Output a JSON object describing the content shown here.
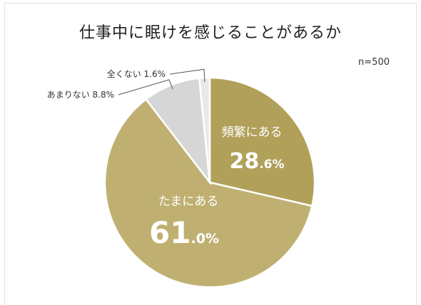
{
  "title": "仕事中に眠けを感じることがあるか",
  "sample_size": "n=500",
  "chart_data": {
    "type": "pie",
    "title": "仕事中に眠けを感じることがあるか",
    "start": "12 o'clock, clockwise",
    "categories": [
      "頻繁にある",
      "たまにある",
      "あまりない",
      "全くない"
    ],
    "values": [
      28.6,
      61.0,
      8.8,
      1.6
    ],
    "value_labels": {
      "freq": {
        "num": "28",
        "dec": ".6%"
      },
      "some": {
        "num": "61",
        "dec": ".0%"
      },
      "rare": "あまりない 8.8%",
      "never": "全くない 1.6%"
    },
    "colors": [
      "#b0a05a",
      "#bfb072",
      "#d6d6d6",
      "#e8e8e8"
    ]
  }
}
